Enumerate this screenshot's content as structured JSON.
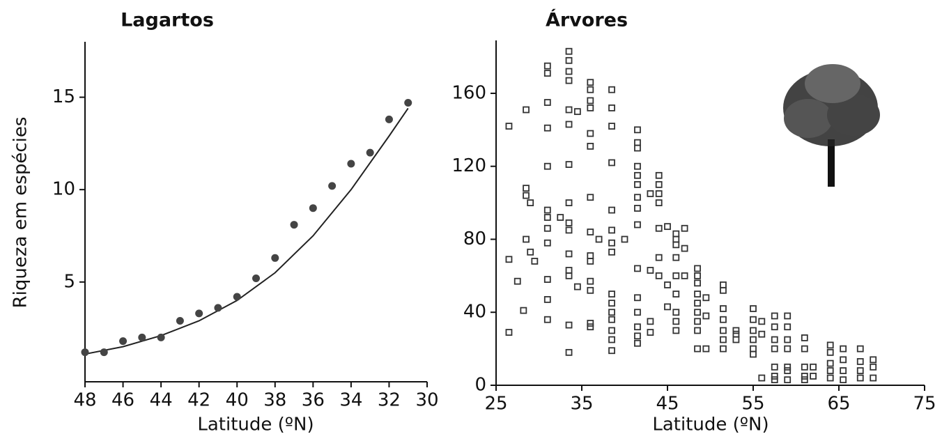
{
  "chart_data": [
    {
      "type": "scatter",
      "title": "Lagartos",
      "xlabel": "Latitude (ºN)",
      "ylabel": "Riqueza em espécies",
      "x": [
        48,
        47,
        46,
        45,
        44,
        43,
        42,
        41,
        40,
        39,
        38,
        37,
        36,
        35,
        34,
        33,
        32,
        31
      ],
      "values": [
        1.2,
        1.2,
        1.8,
        2.0,
        2.0,
        2.9,
        3.3,
        3.6,
        4.2,
        5.2,
        6.3,
        8.1,
        9.0,
        10.2,
        11.4,
        12.0,
        13.8,
        14.7
      ],
      "color": "#444444",
      "marker": "circle",
      "trend": {
        "x": [
          48,
          46,
          44,
          42,
          40,
          38,
          36,
          34,
          32,
          31
        ],
        "values": [
          1.1,
          1.5,
          2.1,
          2.9,
          4.0,
          5.5,
          7.5,
          10.0,
          12.9,
          14.4
        ]
      },
      "xlim": [
        48,
        30
      ],
      "xticks": [
        48,
        46,
        44,
        42,
        40,
        38,
        36,
        34,
        32,
        30
      ],
      "ylim": [
        -0.4,
        18
      ],
      "yticks": [
        5,
        10,
        15
      ]
    },
    {
      "type": "scatter",
      "title": "Árvores",
      "xlabel": "Latitude (ºN)",
      "x": [
        26.5,
        26.5,
        26.5,
        27.5,
        28.2,
        28.5,
        28.5,
        28.5,
        28.5,
        29,
        29,
        29.5,
        31,
        31,
        31,
        31,
        31,
        31,
        31,
        31,
        31,
        31,
        31,
        31,
        32.5,
        33.5,
        33.5,
        33.5,
        33.5,
        33.5,
        33.5,
        33.5,
        33.5,
        33.5,
        33.5,
        33.5,
        33.5,
        33.5,
        33.5,
        33.5,
        34.5,
        34.5,
        36,
        36,
        36,
        36,
        36,
        36,
        36,
        36,
        36,
        36,
        36,
        36,
        36,
        36,
        37,
        38.5,
        38.5,
        38.5,
        38.5,
        38.5,
        38.5,
        38.5,
        38.5,
        38.5,
        38.5,
        38.5,
        38.5,
        38.5,
        38.5,
        38.5,
        40,
        41.5,
        41.5,
        41.5,
        41.5,
        41.5,
        41.5,
        41.5,
        41.5,
        41.5,
        41.5,
        41.5,
        41.5,
        41.5,
        41.5,
        41.5,
        43,
        43,
        43,
        43,
        44,
        44,
        44,
        44,
        44,
        44,
        44,
        45,
        45,
        45,
        46,
        46,
        46,
        46,
        46,
        46,
        46,
        46,
        46,
        47,
        47,
        47,
        48.5,
        48.5,
        48.5,
        48.5,
        48.5,
        48.5,
        48.5,
        48.5,
        48.5,
        49.5,
        49.5,
        49.5,
        51.5,
        51.5,
        51.5,
        51.5,
        51.5,
        51.5,
        51.5,
        53,
        53,
        53,
        55,
        55,
        55,
        55,
        55,
        55,
        56,
        56,
        56,
        57.5,
        57.5,
        57.5,
        57.5,
        57.5,
        57.5,
        57.5,
        59,
        59,
        59,
        59,
        59,
        59,
        59,
        61,
        61,
        61,
        61,
        61,
        62,
        62,
        64,
        64,
        64,
        64,
        64,
        65.5,
        65.5,
        65.5,
        65.5,
        67.5,
        67.5,
        67.5,
        67.5,
        69,
        69,
        69
      ],
      "values": [
        142,
        69,
        29,
        57,
        41,
        151,
        108,
        104,
        80,
        100,
        73,
        68,
        175,
        171,
        155,
        141,
        120,
        96,
        92,
        86,
        78,
        58,
        47,
        36,
        92,
        183,
        178,
        172,
        167,
        151,
        143,
        121,
        100,
        89,
        85,
        72,
        63,
        60,
        33,
        18,
        150,
        54,
        166,
        162,
        156,
        152,
        138,
        131,
        103,
        84,
        71,
        68,
        57,
        52,
        34,
        32,
        80,
        162,
        152,
        142,
        122,
        96,
        85,
        78,
        73,
        50,
        45,
        40,
        36,
        30,
        25,
        19,
        80,
        140,
        133,
        130,
        120,
        115,
        110,
        103,
        97,
        88,
        64,
        48,
        40,
        32,
        27,
        23,
        105,
        63,
        35,
        29,
        115,
        110,
        105,
        100,
        86,
        70,
        60,
        87,
        55,
        43,
        83,
        80,
        77,
        70,
        60,
        50,
        40,
        35,
        30,
        86,
        75,
        60,
        64,
        60,
        56,
        50,
        45,
        40,
        35,
        30,
        20,
        48,
        38,
        20,
        55,
        52,
        42,
        36,
        30,
        25,
        20,
        30,
        28,
        25,
        42,
        36,
        30,
        25,
        20,
        17,
        35,
        28,
        4,
        38,
        32,
        25,
        20,
        10,
        5,
        3,
        38,
        32,
        25,
        20,
        10,
        8,
        3,
        26,
        20,
        10,
        5,
        3,
        10,
        5,
        22,
        18,
        12,
        8,
        4,
        20,
        14,
        8,
        3,
        20,
        13,
        8,
        4,
        14,
        10,
        4
      ],
      "color": "#333333",
      "marker": "square",
      "xlim": [
        25,
        75
      ],
      "xticks": [
        25,
        35,
        45,
        55,
        65,
        75
      ],
      "ylim": [
        0,
        189
      ],
      "yticks": [
        0,
        40,
        80,
        120,
        160
      ]
    }
  ]
}
